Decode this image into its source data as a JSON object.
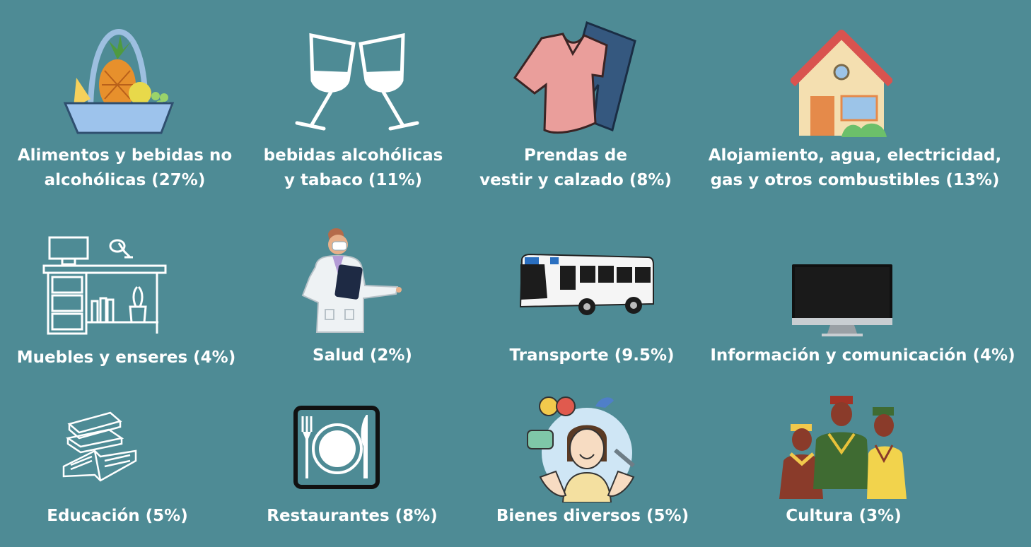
{
  "categories": [
    {
      "id": "food",
      "icon": "fruit-basket-icon",
      "lines": [
        "Alimentos y bebidas no",
        "alcohólicas (27%)"
      ],
      "percent": 27
    },
    {
      "id": "alcohol",
      "icon": "wine-glasses-icon",
      "lines": [
        "bebidas alcohólicas",
        "y tabaco (11%)"
      ],
      "percent": 11
    },
    {
      "id": "clothing",
      "icon": "clothes-icon",
      "lines": [
        "Prendas de",
        "vestir y calzado (8%)"
      ],
      "percent": 8
    },
    {
      "id": "housing",
      "icon": "house-icon",
      "lines": [
        "Alojamiento, agua, electricidad,",
        "gas y otros combustibles (13%)"
      ],
      "percent": 13
    },
    {
      "id": "furniture",
      "icon": "desk-furniture-icon",
      "lines": [
        "Muebles y enseres (4%)"
      ],
      "percent": 4
    },
    {
      "id": "health",
      "icon": "doctor-icon",
      "lines": [
        "Salud (2%)"
      ],
      "percent": 2
    },
    {
      "id": "transport",
      "icon": "bus-icon",
      "lines": [
        "Transporte (9.5%)"
      ],
      "percent": 9.5
    },
    {
      "id": "communication",
      "icon": "computer-monitor-icon",
      "lines": [
        "Información y comunicación (4%)"
      ],
      "percent": 4
    },
    {
      "id": "education",
      "icon": "books-icon",
      "lines": [
        "Educación (5%)"
      ],
      "percent": 5
    },
    {
      "id": "restaurants",
      "icon": "plate-cutlery-icon",
      "lines": [
        "Restaurantes (8%)"
      ],
      "percent": 8
    },
    {
      "id": "misc",
      "icon": "service-person-icon",
      "lines": [
        "Bienes diversos (5%)"
      ],
      "percent": 5
    },
    {
      "id": "culture",
      "icon": "cultural-people-icon",
      "lines": [
        "Cultura (3%)"
      ],
      "percent": 3
    }
  ],
  "colors": {
    "background": "#4e8b95",
    "text": "#ffffff"
  }
}
